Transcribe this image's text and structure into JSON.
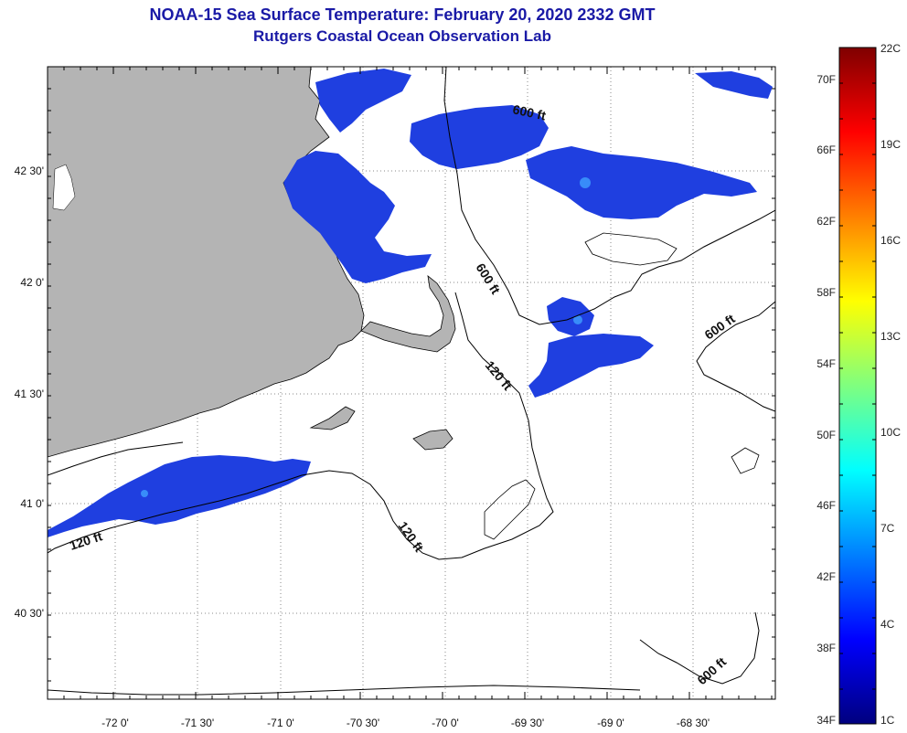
{
  "title": {
    "line1": "NOAA-15 Sea Surface Temperature:  February 20, 2020 2332 GMT",
    "line2": "Rutgers Coastal Ocean Observation Lab"
  },
  "map": {
    "lat_labels": [
      "42 30'",
      "42 0'",
      "41 30'",
      "41 0'",
      "40 30'"
    ],
    "lon_labels": [
      "-72 0'",
      "-71 30'",
      "-71 0'",
      "-70 30'",
      "-70 0'",
      "-69 30'",
      "-69 0'",
      "-68 30'"
    ],
    "contour_labels": [
      "600 ft",
      "600 ft",
      "600 ft",
      "600 ft",
      "120 ft",
      "120 ft",
      "120 ft"
    ],
    "land_color": "#b4b4b4",
    "sst_color": "#1f3fe0"
  },
  "colorbar": {
    "f_labels": [
      "70F",
      "66F",
      "62F",
      "58F",
      "54F",
      "50F",
      "46F",
      "42F",
      "38F",
      "34F"
    ],
    "c_labels": [
      "22C",
      "19C",
      "16C",
      "13C",
      "10C",
      "7C",
      "4C",
      "1C"
    ]
  }
}
